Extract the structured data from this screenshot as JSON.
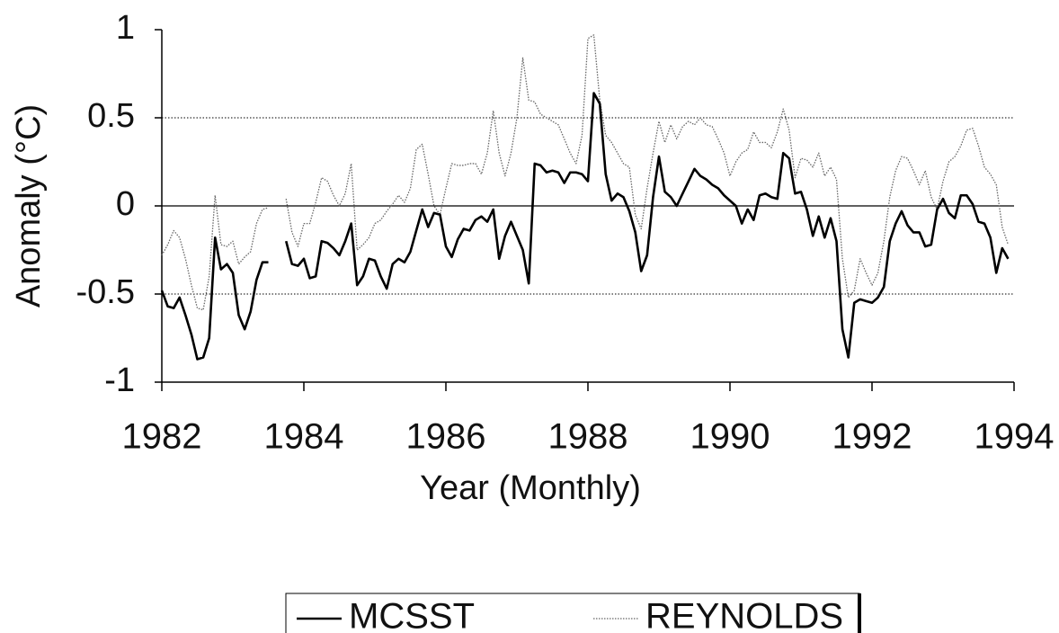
{
  "chart_data": {
    "type": "line",
    "xlabel": "Year (Monthly)",
    "ylabel": "Anomaly (°C)",
    "xlim": [
      1982,
      1994
    ],
    "xticks": [
      1982,
      1984,
      1986,
      1988,
      1990,
      1992,
      1994
    ],
    "ylim": [
      -1,
      1
    ],
    "yticks": [
      -1,
      -0.5,
      0,
      0.5,
      1
    ],
    "grid": true,
    "legend": "bottom",
    "x": [
      1982,
      1982.083,
      1982.167,
      1982.25,
      1982.333,
      1982.417,
      1982.5,
      1982.583,
      1982.667,
      1982.75,
      1982.833,
      1982.917,
      1983,
      1983.083,
      1983.167,
      1983.25,
      1983.333,
      1983.417,
      1983.5,
      1983.583,
      1983.667,
      1983.75,
      1983.833,
      1983.917,
      1984,
      1984.083,
      1984.167,
      1984.25,
      1984.333,
      1984.417,
      1984.5,
      1984.583,
      1984.667,
      1984.75,
      1984.833,
      1984.917,
      1985,
      1985.083,
      1985.167,
      1985.25,
      1985.333,
      1985.417,
      1985.5,
      1985.583,
      1985.667,
      1985.75,
      1985.833,
      1985.917,
      1986,
      1986.083,
      1986.167,
      1986.25,
      1986.333,
      1986.417,
      1986.5,
      1986.583,
      1986.667,
      1986.75,
      1986.833,
      1986.917,
      1987,
      1987.083,
      1987.167,
      1987.25,
      1987.333,
      1987.417,
      1987.5,
      1987.583,
      1987.667,
      1987.75,
      1987.833,
      1987.917,
      1988,
      1988.083,
      1988.167,
      1988.25,
      1988.333,
      1988.417,
      1988.5,
      1988.583,
      1988.667,
      1988.75,
      1988.833,
      1988.917,
      1989,
      1989.083,
      1989.167,
      1989.25,
      1989.333,
      1989.417,
      1989.5,
      1989.583,
      1989.667,
      1989.75,
      1989.833,
      1989.917,
      1990,
      1990.083,
      1990.167,
      1990.25,
      1990.333,
      1990.417,
      1990.5,
      1990.583,
      1990.667,
      1990.75,
      1990.833,
      1990.917,
      1991,
      1991.083,
      1991.167,
      1991.25,
      1991.333,
      1991.417,
      1991.5,
      1991.583,
      1991.667,
      1991.75,
      1991.833,
      1991.917,
      1992,
      1992.083,
      1992.167,
      1992.25,
      1992.333,
      1992.417,
      1992.5,
      1992.583,
      1992.667,
      1992.75,
      1992.833,
      1992.917,
      1993,
      1993.083,
      1993.167,
      1993.25,
      1993.333,
      1993.417,
      1993.5,
      1993.583,
      1993.667,
      1993.75,
      1993.833,
      1993.917
    ],
    "series": [
      {
        "name": "MCSST",
        "color": "#000000",
        "linestyle": "solid",
        "values": [
          -0.48,
          -0.57,
          -0.58,
          -0.52,
          -0.62,
          -0.73,
          -0.87,
          -0.86,
          -0.75,
          -0.18,
          -0.36,
          -0.33,
          -0.38,
          -0.62,
          -0.7,
          -0.6,
          -0.42,
          -0.32,
          -0.32,
          null,
          null,
          -0.2,
          -0.33,
          -0.34,
          -0.3,
          -0.41,
          -0.4,
          -0.2,
          -0.21,
          -0.24,
          -0.28,
          -0.2,
          -0.1,
          -0.45,
          -0.4,
          -0.3,
          -0.31,
          -0.4,
          -0.47,
          -0.33,
          -0.3,
          -0.32,
          -0.26,
          -0.14,
          -0.02,
          -0.12,
          -0.04,
          -0.05,
          -0.23,
          -0.29,
          -0.19,
          -0.13,
          -0.14,
          -0.08,
          -0.06,
          -0.09,
          -0.02,
          -0.3,
          -0.17,
          -0.09,
          -0.17,
          -0.25,
          -0.44,
          0.24,
          0.23,
          0.19,
          0.2,
          0.19,
          0.13,
          0.19,
          0.19,
          0.18,
          0.14,
          0.64,
          0.58,
          0.18,
          0.03,
          0.07,
          0.05,
          -0.03,
          -0.15,
          -0.37,
          -0.28,
          0.05,
          0.28,
          0.08,
          0.05,
          0,
          0.07,
          0.14,
          0.21,
          0.17,
          0.15,
          0.12,
          0.1,
          0.06,
          0.03,
          0,
          -0.1,
          -0.02,
          -0.08,
          0.06,
          0.07,
          0.05,
          0.04,
          0.3,
          0.27,
          0.07,
          0.08,
          -0.02,
          -0.17,
          -0.06,
          -0.18,
          -0.07,
          -0.2,
          -0.7,
          -0.86,
          -0.55,
          -0.53,
          -0.54,
          -0.55,
          -0.52,
          -0.46,
          -0.2,
          -0.1,
          -0.03,
          -0.11,
          -0.15,
          -0.15,
          -0.23,
          -0.22,
          -0.02,
          0.04,
          -0.04,
          -0.07,
          0.06,
          0.06,
          0.01,
          -0.09,
          -0.1,
          -0.18,
          -0.38,
          -0.24,
          -0.3
        ]
      },
      {
        "name": "REYNOLDS",
        "color": "#666666",
        "linestyle": "dotted",
        "values": [
          -0.28,
          -0.22,
          -0.14,
          -0.18,
          -0.3,
          -0.45,
          -0.58,
          -0.59,
          -0.4,
          0.06,
          -0.22,
          -0.23,
          -0.2,
          -0.33,
          -0.29,
          -0.26,
          -0.1,
          -0.02,
          -0.01,
          null,
          null,
          0.04,
          -0.15,
          -0.23,
          -0.1,
          -0.1,
          0.02,
          0.16,
          0.14,
          0.06,
          0,
          0.07,
          0.24,
          -0.25,
          -0.22,
          -0.18,
          -0.1,
          -0.08,
          -0.03,
          0.01,
          0.06,
          0.02,
          0.1,
          0.32,
          0.35,
          0.18,
          0,
          -0.05,
          0.1,
          0.24,
          0.23,
          0.23,
          0.24,
          0.24,
          0.18,
          0.3,
          0.54,
          0.3,
          0.17,
          0.3,
          0.5,
          0.84,
          0.6,
          0.59,
          0.52,
          0.5,
          0.48,
          0.46,
          0.38,
          0.3,
          0.24,
          0.4,
          0.95,
          0.97,
          0.6,
          0.4,
          0.36,
          0.3,
          0.24,
          0.22,
          -0.05,
          -0.13,
          0.1,
          0.3,
          0.48,
          0.36,
          0.46,
          0.38,
          0.45,
          0.48,
          0.46,
          0.5,
          0.46,
          0.45,
          0.38,
          0.3,
          0.17,
          0.25,
          0.3,
          0.32,
          0.42,
          0.36,
          0.36,
          0.33,
          0.42,
          0.55,
          0.43,
          0.16,
          0.27,
          0.26,
          0.22,
          0.3,
          0.17,
          0.22,
          0.15,
          -0.3,
          -0.52,
          -0.48,
          -0.3,
          -0.38,
          -0.45,
          -0.38,
          -0.2,
          0.05,
          0.2,
          0.28,
          0.27,
          0.2,
          0.12,
          0.2,
          0.05,
          -0.02,
          0.14,
          0.25,
          0.28,
          0.34,
          0.43,
          0.44,
          0.34,
          0.22,
          0.18,
          0.12,
          -0.12,
          -0.22
        ]
      }
    ]
  }
}
